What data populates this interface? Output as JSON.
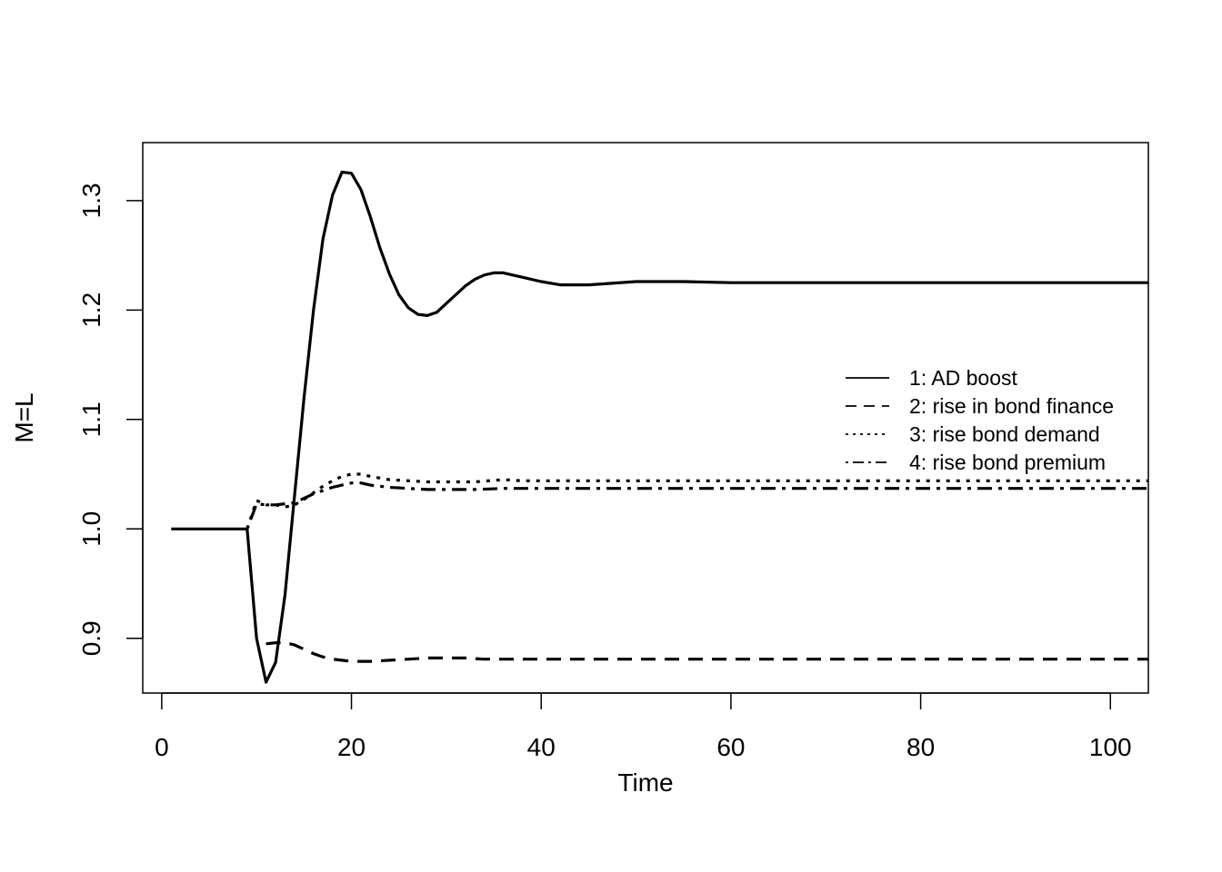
{
  "chart_data": {
    "type": "line",
    "title": "",
    "xlabel": "Time",
    "ylabel": "M=L",
    "xlim": [
      -2,
      104
    ],
    "ylim": [
      0.85,
      1.353
    ],
    "x_ticks": [
      0,
      20,
      40,
      60,
      80,
      100
    ],
    "y_ticks": [
      0.9,
      1.0,
      1.1,
      1.2,
      1.3
    ],
    "x_tick_labels": [
      "0",
      "20",
      "40",
      "60",
      "80",
      "100"
    ],
    "y_tick_labels": [
      "0.9",
      "1.0",
      "1.1",
      "1.2",
      "1.3"
    ],
    "grid": false,
    "legend_position": "right",
    "series": [
      {
        "name": "1: AD boost",
        "line_style": "solid",
        "points": [
          [
            1,
            1.0
          ],
          [
            9,
            1.0
          ],
          [
            10,
            0.9
          ],
          [
            11,
            0.86
          ],
          [
            12,
            0.878
          ],
          [
            13,
            0.94
          ],
          [
            14,
            1.03
          ],
          [
            15,
            1.12
          ],
          [
            16,
            1.2
          ],
          [
            17,
            1.265
          ],
          [
            18,
            1.305
          ],
          [
            19,
            1.326
          ],
          [
            20,
            1.325
          ],
          [
            21,
            1.31
          ],
          [
            22,
            1.285
          ],
          [
            23,
            1.257
          ],
          [
            24,
            1.233
          ],
          [
            25,
            1.214
          ],
          [
            26,
            1.202
          ],
          [
            27,
            1.196
          ],
          [
            28,
            1.195
          ],
          [
            29,
            1.198
          ],
          [
            30,
            1.206
          ],
          [
            31,
            1.214
          ],
          [
            32,
            1.222
          ],
          [
            33,
            1.228
          ],
          [
            34,
            1.232
          ],
          [
            35,
            1.234
          ],
          [
            36,
            1.234
          ],
          [
            37,
            1.232
          ],
          [
            38,
            1.23
          ],
          [
            40,
            1.226
          ],
          [
            42,
            1.223
          ],
          [
            45,
            1.223
          ],
          [
            50,
            1.226
          ],
          [
            55,
            1.226
          ],
          [
            60,
            1.225
          ],
          [
            70,
            1.225
          ],
          [
            80,
            1.225
          ],
          [
            90,
            1.225
          ],
          [
            100,
            1.225
          ],
          [
            104,
            1.225
          ]
        ]
      },
      {
        "name": "2: rise in bond finance",
        "line_style": "dashed",
        "points": [
          [
            11,
            0.895
          ],
          [
            12,
            0.896
          ],
          [
            13,
            0.896
          ],
          [
            14,
            0.894
          ],
          [
            15,
            0.89
          ],
          [
            16,
            0.886
          ],
          [
            17,
            0.883
          ],
          [
            18,
            0.881
          ],
          [
            19,
            0.88
          ],
          [
            20,
            0.879
          ],
          [
            22,
            0.879
          ],
          [
            24,
            0.88
          ],
          [
            26,
            0.881
          ],
          [
            28,
            0.882
          ],
          [
            30,
            0.882
          ],
          [
            32,
            0.882
          ],
          [
            34,
            0.881
          ],
          [
            40,
            0.881
          ],
          [
            50,
            0.881
          ],
          [
            60,
            0.881
          ],
          [
            80,
            0.881
          ],
          [
            100,
            0.881
          ],
          [
            104,
            0.881
          ]
        ]
      },
      {
        "name": "3: rise bond demand",
        "line_style": "dotted",
        "points": [
          [
            9,
            1.0
          ],
          [
            10,
            1.026
          ],
          [
            11,
            1.022
          ],
          [
            12,
            1.022
          ],
          [
            13,
            1.02
          ],
          [
            14,
            1.022
          ],
          [
            15,
            1.027
          ],
          [
            16,
            1.033
          ],
          [
            17,
            1.039
          ],
          [
            18,
            1.044
          ],
          [
            19,
            1.048
          ],
          [
            20,
            1.05
          ],
          [
            21,
            1.05
          ],
          [
            22,
            1.048
          ],
          [
            24,
            1.045
          ],
          [
            26,
            1.044
          ],
          [
            28,
            1.043
          ],
          [
            30,
            1.043
          ],
          [
            33,
            1.043
          ],
          [
            36,
            1.045
          ],
          [
            38,
            1.044
          ],
          [
            40,
            1.044
          ],
          [
            50,
            1.044
          ],
          [
            60,
            1.044
          ],
          [
            80,
            1.044
          ],
          [
            100,
            1.044
          ],
          [
            104,
            1.044
          ]
        ]
      },
      {
        "name": "4: rise bond premium",
        "line_style": "dotdash",
        "points": [
          [
            9,
            1.0
          ],
          [
            10,
            1.023
          ],
          [
            11,
            1.022
          ],
          [
            12,
            1.022
          ],
          [
            13,
            1.023
          ],
          [
            14,
            1.024
          ],
          [
            15,
            1.028
          ],
          [
            16,
            1.032
          ],
          [
            17,
            1.035
          ],
          [
            18,
            1.038
          ],
          [
            19,
            1.04
          ],
          [
            20,
            1.042
          ],
          [
            21,
            1.042
          ],
          [
            22,
            1.04
          ],
          [
            24,
            1.038
          ],
          [
            26,
            1.037
          ],
          [
            28,
            1.036
          ],
          [
            30,
            1.036
          ],
          [
            33,
            1.036
          ],
          [
            36,
            1.037
          ],
          [
            38,
            1.037
          ],
          [
            40,
            1.037
          ],
          [
            50,
            1.037
          ],
          [
            60,
            1.037
          ],
          [
            80,
            1.037
          ],
          [
            100,
            1.037
          ],
          [
            104,
            1.037
          ]
        ]
      }
    ]
  }
}
